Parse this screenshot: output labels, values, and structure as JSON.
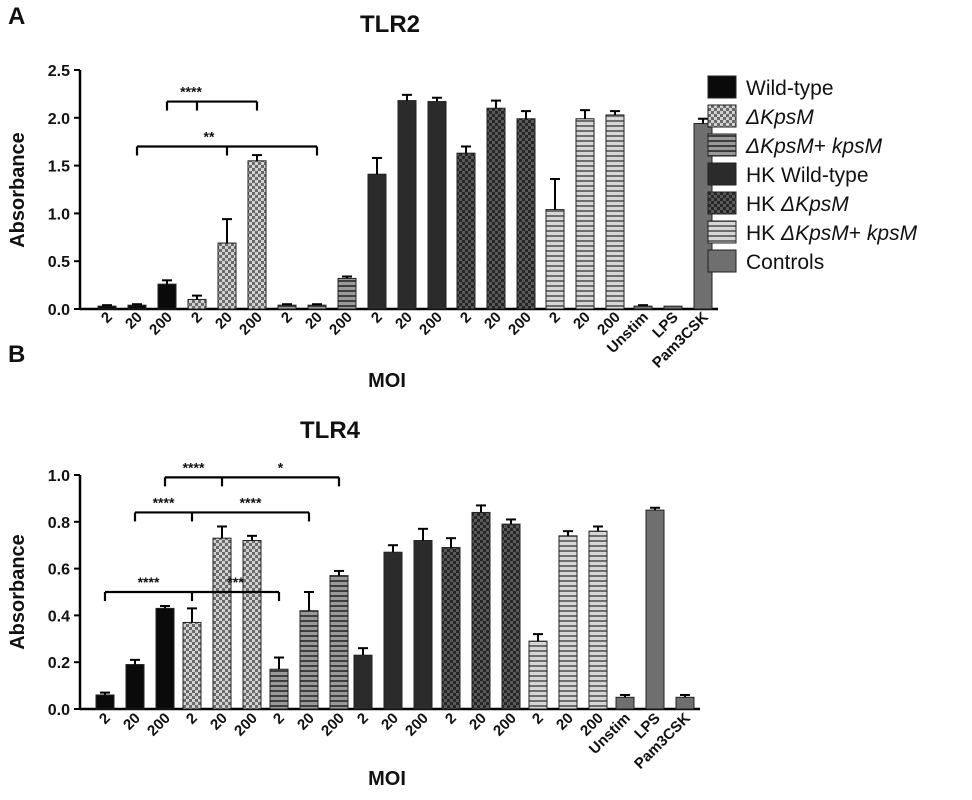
{
  "patterns": {
    "Wild-type": "solid-black",
    "ΔKpsM": "checker-light",
    "ΔKpsM+ kpsM": "horizontal-stripes",
    "HK Wild-type": "solid-dark",
    "HK ΔKpsM": "checker-dark",
    "HK ΔKpsM+ kpsM": "horizontal-stripes-light",
    "Controls": "solid-gray"
  },
  "legend": {
    "items": [
      {
        "pattern": "Wild-type",
        "parts": [
          {
            "t": "Wild-type",
            "i": false
          }
        ]
      },
      {
        "pattern": "ΔKpsM",
        "parts": [
          {
            "t": "ΔKpsM",
            "i": true
          }
        ]
      },
      {
        "pattern": "ΔKpsM+ kpsM",
        "parts": [
          {
            "t": "ΔKpsM",
            "i": true
          },
          {
            "t": "+ ",
            "i": false
          },
          {
            "t": "kpsM",
            "i": true
          }
        ]
      },
      {
        "pattern": "HK Wild-type",
        "parts": [
          {
            "t": "HK Wild-type",
            "i": false
          }
        ]
      },
      {
        "pattern": "HK ΔKpsM",
        "parts": [
          {
            "t": "HK ",
            "i": false
          },
          {
            "t": "ΔKpsM",
            "i": true
          }
        ]
      },
      {
        "pattern": "HK ΔKpsM+ kpsM",
        "parts": [
          {
            "t": "HK ",
            "i": false
          },
          {
            "t": "ΔKpsM",
            "i": true
          },
          {
            "t": "+ ",
            "i": false
          },
          {
            "t": "kpsM",
            "i": true
          }
        ]
      },
      {
        "pattern": "Controls",
        "parts": [
          {
            "t": "Controls",
            "i": false
          }
        ]
      }
    ]
  },
  "chart_data": [
    {
      "type": "bar",
      "panel": "A",
      "title": "TLR2",
      "xlabel": "MOI",
      "ylabel": "Absorbance",
      "ylim": [
        0,
        2.5
      ],
      "yticks": [
        "0.0",
        "0.5",
        "1.0",
        "1.5",
        "2.0",
        "2.5"
      ],
      "groups": [
        {
          "series": "Wild-type",
          "categories": [
            "2",
            "20",
            "200"
          ],
          "values": [
            0.03,
            0.04,
            0.26
          ],
          "errors": [
            0.01,
            0.01,
            0.04
          ]
        },
        {
          "series": "ΔKpsM",
          "categories": [
            "2",
            "20",
            "200"
          ],
          "values": [
            0.1,
            0.69,
            1.55
          ],
          "errors": [
            0.04,
            0.25,
            0.06
          ]
        },
        {
          "series": "ΔKpsM+ kpsM",
          "categories": [
            "2",
            "20",
            "200"
          ],
          "values": [
            0.04,
            0.04,
            0.32
          ],
          "errors": [
            0.01,
            0.01,
            0.02
          ]
        },
        {
          "series": "HK Wild-type",
          "categories": [
            "2",
            "20",
            "200"
          ],
          "values": [
            1.41,
            2.18,
            2.17
          ],
          "errors": [
            0.17,
            0.06,
            0.04
          ]
        },
        {
          "series": "HK ΔKpsM",
          "categories": [
            "2",
            "20",
            "200"
          ],
          "values": [
            1.63,
            2.1,
            1.99
          ],
          "errors": [
            0.07,
            0.08,
            0.08
          ]
        },
        {
          "series": "HK ΔKpsM+ kpsM",
          "categories": [
            "2",
            "20",
            "200"
          ],
          "values": [
            1.04,
            1.99,
            2.03
          ],
          "errors": [
            0.32,
            0.09,
            0.04
          ]
        },
        {
          "series": "Controls",
          "categories": [
            "Unstim",
            "LPS",
            "Pam3CSK"
          ],
          "values": [
            0.03,
            0.03,
            1.94
          ],
          "errors": [
            0.01,
            0.0,
            0.05
          ]
        }
      ],
      "significance": [
        {
          "label": "****",
          "y": 2.17,
          "ends": [
            [
              1,
              0
            ],
            [
              1,
              2
            ]
          ],
          "from": [
            0,
            2
          ]
        },
        {
          "label": "**",
          "y": 1.7,
          "ends": [
            [
              1,
              1
            ],
            [
              2,
              1
            ]
          ],
          "from": [
            0,
            1
          ]
        }
      ]
    },
    {
      "type": "bar",
      "panel": "B",
      "title": "TLR4",
      "xlabel": "MOI",
      "ylabel": "Absorbance",
      "ylim": [
        0,
        1.0
      ],
      "yticks": [
        "0.0",
        "0.2",
        "0.4",
        "0.6",
        "0.8",
        "1.0"
      ],
      "groups": [
        {
          "series": "Wild-type",
          "categories": [
            "2",
            "20",
            "200"
          ],
          "values": [
            0.06,
            0.19,
            0.43
          ],
          "errors": [
            0.01,
            0.02,
            0.01
          ]
        },
        {
          "series": "ΔKpsM",
          "categories": [
            "2",
            "20",
            "200"
          ],
          "values": [
            0.37,
            0.73,
            0.72
          ],
          "errors": [
            0.06,
            0.05,
            0.02
          ]
        },
        {
          "series": "ΔKpsM+ kpsM",
          "categories": [
            "2",
            "20",
            "200"
          ],
          "values": [
            0.17,
            0.42,
            0.57
          ],
          "errors": [
            0.05,
            0.08,
            0.02
          ]
        },
        {
          "series": "HK Wild-type",
          "categories": [
            "2",
            "20",
            "200"
          ],
          "values": [
            0.23,
            0.67,
            0.72
          ],
          "errors": [
            0.03,
            0.03,
            0.05
          ]
        },
        {
          "series": "HK ΔKpsM",
          "categories": [
            "2",
            "20",
            "200"
          ],
          "values": [
            0.69,
            0.84,
            0.79
          ],
          "errors": [
            0.04,
            0.03,
            0.02
          ]
        },
        {
          "series": "HK ΔKpsM+ kpsM",
          "categories": [
            "2",
            "20",
            "200"
          ],
          "values": [
            0.29,
            0.74,
            0.76
          ],
          "errors": [
            0.03,
            0.02,
            0.02
          ]
        },
        {
          "series": "Controls",
          "categories": [
            "Unstim",
            "LPS",
            "Pam3CSK"
          ],
          "values": [
            0.05,
            0.85,
            0.05
          ],
          "errors": [
            0.01,
            0.01,
            0.01
          ]
        }
      ],
      "significance": [
        {
          "label": "****",
          "y": 0.99,
          "ends": [
            [
              1,
              1
            ],
            [
              2,
              2
            ]
          ],
          "from": [
            0,
            2
          ],
          "labels": [
            "****",
            "*"
          ]
        },
        {
          "label": "****",
          "y": 0.84,
          "ends": [
            [
              1,
              0
            ],
            [
              2,
              1
            ]
          ],
          "from": [
            0,
            1
          ],
          "labels": [
            "****",
            "****"
          ]
        },
        {
          "label": "****",
          "y": 0.5,
          "ends": [
            [
              1,
              0
            ],
            [
              2,
              0
            ]
          ],
          "from": [
            0,
            0
          ],
          "labels": [
            "****",
            "***"
          ]
        }
      ]
    }
  ]
}
